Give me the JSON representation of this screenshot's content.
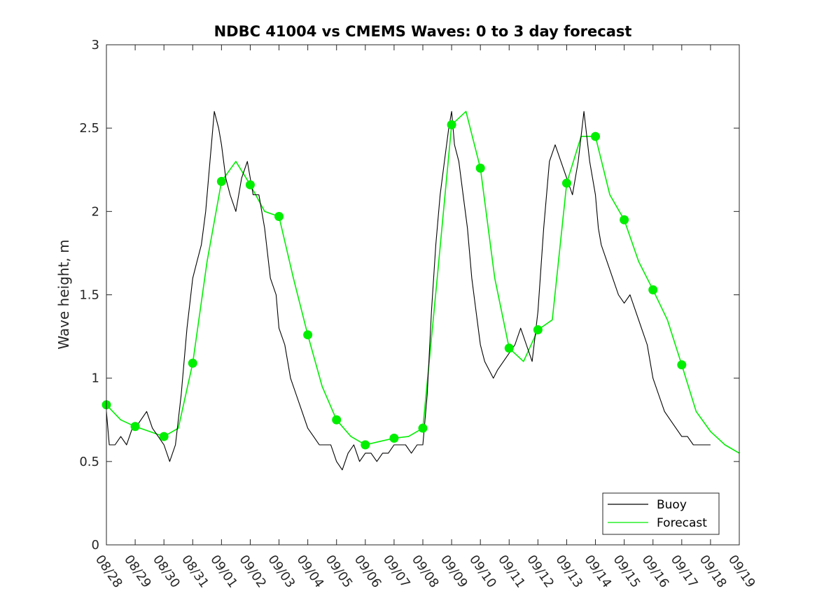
{
  "chart_data": {
    "type": "line",
    "title": "NDBC 41004 vs CMEMS Waves: 0 to 3 day forecast",
    "xlabel": "",
    "ylabel": "Wave height, m",
    "xlim": [
      0,
      22
    ],
    "ylim": [
      0,
      3
    ],
    "yticks": [
      0,
      0.5,
      1,
      1.5,
      2,
      2.5,
      3
    ],
    "ytick_labels": [
      "0",
      "0.5",
      "1",
      "1.5",
      "2",
      "2.5",
      "3"
    ],
    "xtick_labels": [
      "08/28",
      "08/29",
      "08/30",
      "08/31",
      "09/01",
      "09/02",
      "09/03",
      "09/04",
      "09/05",
      "09/06",
      "09/07",
      "09/08",
      "09/09",
      "09/10",
      "09/11",
      "09/12",
      "09/13",
      "09/14",
      "09/15",
      "09/16",
      "09/17",
      "09/18",
      "09/19"
    ],
    "grid": false,
    "legend_position": "bottom-right",
    "colors": {
      "buoy": "#000000",
      "forecast": "#00ee00"
    },
    "series": [
      {
        "name": "Buoy",
        "x": [
          0,
          0.1,
          0.3,
          0.5,
          0.7,
          0.9,
          1.0,
          1.2,
          1.4,
          1.6,
          1.8,
          2.0,
          2.2,
          2.4,
          2.6,
          2.8,
          3.0,
          3.15,
          3.3,
          3.45,
          3.6,
          3.75,
          3.9,
          4.0,
          4.15,
          4.3,
          4.5,
          4.7,
          4.9,
          5.1,
          5.3,
          5.5,
          5.7,
          5.9,
          6.0,
          6.2,
          6.4,
          6.6,
          6.8,
          7.0,
          7.2,
          7.4,
          7.6,
          7.8,
          8.0,
          8.2,
          8.4,
          8.6,
          8.8,
          9.0,
          9.2,
          9.4,
          9.6,
          9.8,
          10.0,
          10.2,
          10.4,
          10.6,
          10.8,
          11.0,
          11.15,
          11.3,
          11.45,
          11.6,
          11.75,
          11.9,
          12.0,
          12.1,
          12.25,
          12.4,
          12.55,
          12.7,
          12.85,
          13.0,
          13.15,
          13.3,
          13.45,
          13.6,
          13.8,
          14.0,
          14.2,
          14.4,
          14.6,
          14.8,
          15.0,
          15.2,
          15.4,
          15.6,
          15.8,
          16.0,
          16.2,
          16.4,
          16.6,
          16.8,
          17.0,
          17.1,
          17.2,
          17.4,
          17.6,
          17.8,
          18.0,
          18.2,
          18.4,
          18.6,
          18.8,
          19.0,
          19.2,
          19.4,
          19.6,
          19.8,
          20.0,
          20.2,
          20.4,
          20.6,
          20.8,
          21.0
        ],
        "y": [
          0.8,
          0.6,
          0.6,
          0.65,
          0.6,
          0.7,
          0.7,
          0.75,
          0.8,
          0.7,
          0.65,
          0.6,
          0.5,
          0.6,
          0.9,
          1.3,
          1.6,
          1.7,
          1.8,
          2.0,
          2.3,
          2.6,
          2.5,
          2.4,
          2.2,
          2.1,
          2.0,
          2.2,
          2.3,
          2.1,
          2.1,
          1.9,
          1.6,
          1.5,
          1.3,
          1.2,
          1.0,
          0.9,
          0.8,
          0.7,
          0.65,
          0.6,
          0.6,
          0.6,
          0.5,
          0.45,
          0.55,
          0.6,
          0.5,
          0.55,
          0.55,
          0.5,
          0.55,
          0.55,
          0.6,
          0.6,
          0.6,
          0.55,
          0.6,
          0.6,
          0.9,
          1.4,
          1.8,
          2.1,
          2.3,
          2.5,
          2.6,
          2.4,
          2.3,
          2.1,
          1.9,
          1.6,
          1.4,
          1.2,
          1.1,
          1.05,
          1.0,
          1.05,
          1.1,
          1.15,
          1.2,
          1.3,
          1.2,
          1.1,
          1.4,
          1.9,
          2.3,
          2.4,
          2.3,
          2.2,
          2.1,
          2.3,
          2.6,
          2.3,
          2.1,
          1.9,
          1.8,
          1.7,
          1.6,
          1.5,
          1.45,
          1.5,
          1.4,
          1.3,
          1.2,
          1.0,
          0.9,
          0.8,
          0.75,
          0.7,
          0.65,
          0.65,
          0.6,
          0.6,
          0.6,
          0.6
        ]
      },
      {
        "name": "Forecast",
        "x": [
          0,
          0.5,
          1,
          1.5,
          2,
          2.5,
          3,
          3.5,
          4,
          4.5,
          5,
          5.5,
          6,
          6.5,
          7,
          7.5,
          8,
          8.5,
          9,
          9.5,
          10,
          10.5,
          11,
          11.5,
          12,
          12.5,
          13,
          13.5,
          14,
          14.5,
          15,
          15.5,
          16,
          16.5,
          17,
          17.5,
          18,
          18.5,
          19,
          19.5,
          20,
          20.5,
          21,
          21.5,
          22
        ],
        "y": [
          0.84,
          0.75,
          0.71,
          0.68,
          0.65,
          0.7,
          1.09,
          1.7,
          2.18,
          2.3,
          2.16,
          2.0,
          1.97,
          1.6,
          1.26,
          0.95,
          0.75,
          0.65,
          0.6,
          0.62,
          0.64,
          0.65,
          0.7,
          1.6,
          2.52,
          2.6,
          2.26,
          1.6,
          1.18,
          1.1,
          1.29,
          1.35,
          2.17,
          2.45,
          2.45,
          2.1,
          1.95,
          1.7,
          1.53,
          1.35,
          1.08,
          0.8,
          0.68,
          0.6,
          0.55
        ]
      }
    ],
    "markers": {
      "x": [
        0,
        1,
        2,
        3,
        4,
        5,
        6,
        7,
        8,
        9,
        10,
        11,
        12,
        13,
        14,
        15,
        16,
        17,
        18,
        19,
        20
      ],
      "y": [
        0.84,
        0.71,
        0.65,
        1.09,
        2.18,
        2.16,
        1.97,
        1.26,
        0.75,
        0.6,
        0.64,
        0.7,
        2.52,
        2.26,
        1.18,
        1.29,
        2.17,
        2.45,
        1.95,
        1.53,
        1.08
      ]
    }
  }
}
